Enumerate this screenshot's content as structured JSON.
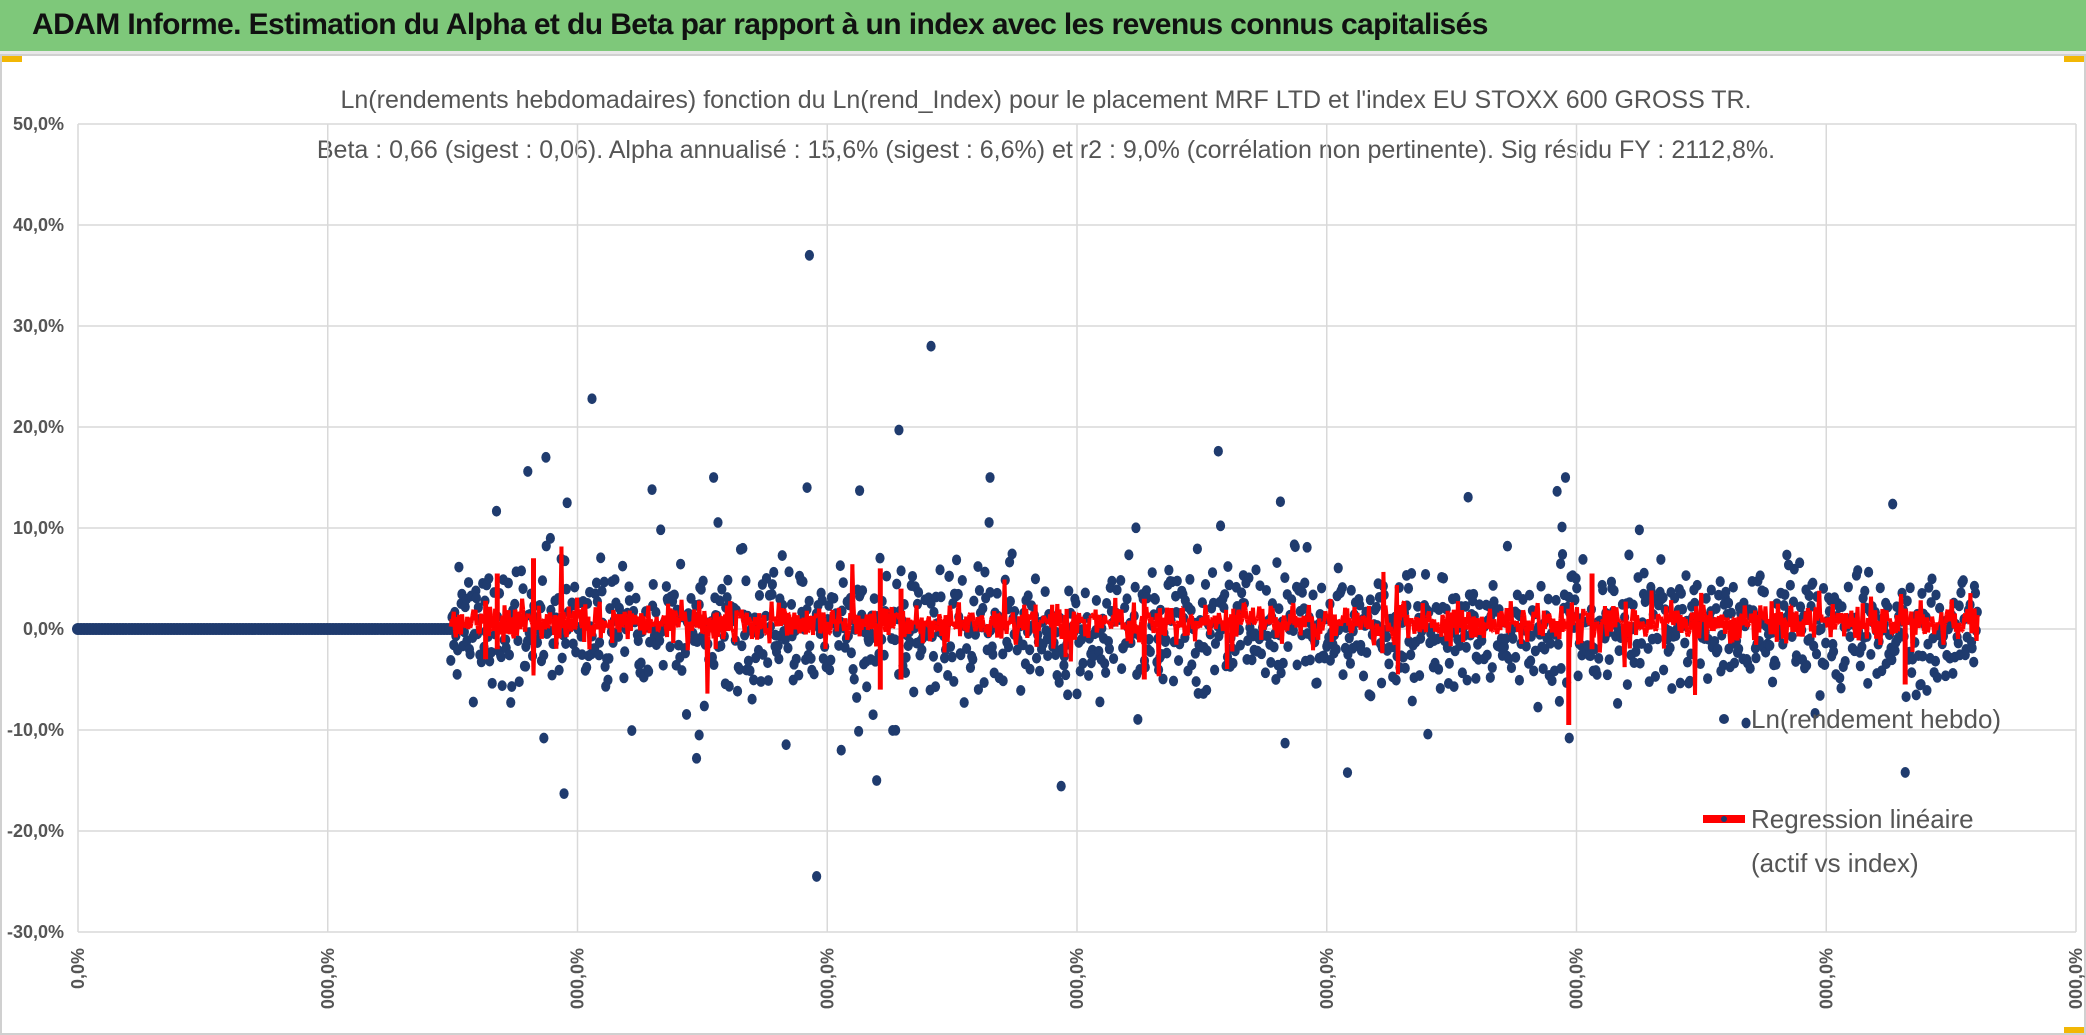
{
  "header": {
    "title": "ADAM Informe. Estimation du Alpha et du Beta par rapport à un index avec les revenus connus capitalisés"
  },
  "colors": {
    "header_bg": "#7ec87a",
    "accent_corner": "#f2b705",
    "points": "#1f3b6e",
    "regression": "#ff0000",
    "grid": "#d9d9d9",
    "text": "#555555"
  },
  "chart_data": {
    "type": "scatter",
    "title_line1": "Ln(rendements hebdomadaires) fonction du Ln(rend_Index) pour le placement MRF LTD et l'index EU STOXX 600 GROSS TR.",
    "title_line2": "Beta : 0,66 (sigest : 0,06). Alpha annualisé : 15,6% (sigest : 6,6%) et r2 : 9,0% (corrélation non pertinente). Sig résidu FY : 2112,8%.",
    "ylim": [
      -0.3,
      0.5
    ],
    "y_ticks": [
      "-30,0%",
      "-20,0%",
      "-10,0%",
      "0,0%",
      "10,0%",
      "20,0%",
      "30,0%",
      "40,0%",
      "50,0%"
    ],
    "x_ticks": [
      "0,0%",
      "000,0%",
      "000,0%",
      "000,0%",
      "000,0%",
      "000,0%",
      "000,0%",
      "000,0%",
      "000,0%"
    ],
    "grid": true,
    "legend_position": "right",
    "series": [
      {
        "name": "Ln(rendement hebdo)",
        "role": "points"
      },
      {
        "name": "Regression linéaire",
        "name_line2": "(actif vs index)",
        "role": "line"
      }
    ],
    "x_start_rows": 1440,
    "zero_rows_until": 1440,
    "x_range": [
      0,
      7720
    ],
    "notable_points": [
      {
        "x": 2826,
        "y": 0.37
      },
      {
        "x": 3296,
        "y": 0.28
      },
      {
        "x": 1986,
        "y": 0.228
      },
      {
        "x": 3172,
        "y": 0.197
      },
      {
        "x": 4406,
        "y": 0.176
      },
      {
        "x": 1808,
        "y": 0.17
      },
      {
        "x": 1738,
        "y": 0.156
      },
      {
        "x": 3524,
        "y": 0.15
      },
      {
        "x": 2456,
        "y": 0.15
      },
      {
        "x": 2817,
        "y": 0.14
      },
      {
        "x": 2218,
        "y": 0.138
      },
      {
        "x": 4646,
        "y": 0.126
      },
      {
        "x": 1890,
        "y": 0.125
      },
      {
        "x": 3020,
        "y": 0.137
      },
      {
        "x": 5734,
        "y": 0.101
      },
      {
        "x": 2854,
        "y": -0.245
      },
      {
        "x": 1878,
        "y": -0.163
      },
      {
        "x": 3086,
        "y": -0.15
      },
      {
        "x": 2390,
        "y": -0.128
      },
      {
        "x": 2949,
        "y": -0.12
      },
      {
        "x": 4664,
        "y": -0.113
      },
      {
        "x": 5762,
        "y": -0.108
      },
      {
        "x": 1800,
        "y": -0.108
      },
      {
        "x": 2400,
        "y": -0.105
      }
    ]
  }
}
